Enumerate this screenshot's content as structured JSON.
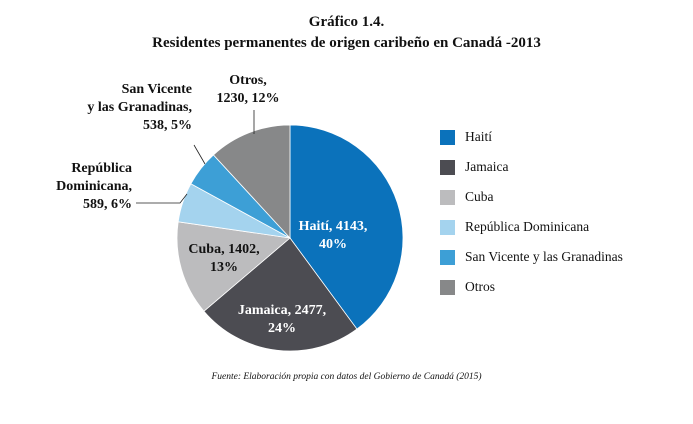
{
  "title": "Gráfico 1.4.",
  "subtitle": "Residentes permanentes de origen caribeño en Canadá -2013",
  "source": "Fuente: Elaboración propia con datos del Gobierno de Canadá (2015)",
  "chart_data": {
    "type": "pie",
    "categories": [
      "Haití",
      "Jamaica",
      "Cuba",
      "República Dominicana",
      "San Vicente y las Granadinas",
      "Otros"
    ],
    "values": [
      4143,
      2477,
      1402,
      589,
      538,
      1230
    ],
    "percents": [
      "40%",
      "24%",
      "13%",
      "6%",
      "5%",
      "12%"
    ],
    "colors": [
      "#0b72bb",
      "#4c4c52",
      "#bcbcbe",
      "#a4d3ee",
      "#3d9fd6",
      "#878889"
    ],
    "labels": [
      {
        "lines": [
          "Haití, 4143,",
          "40%"
        ],
        "color": "#ffffff"
      },
      {
        "lines": [
          "Jamaica, 2477,",
          "24%"
        ],
        "color": "#ffffff"
      },
      {
        "lines": [
          "Cuba, 1402,",
          "13%"
        ],
        "color": "#111111"
      },
      {
        "lines": [
          "República",
          "Dominicana,",
          "589, 6%"
        ],
        "color": "#111111"
      },
      {
        "lines": [
          "San Vicente",
          "y las Granadinas,",
          "538, 5%"
        ],
        "color": "#111111"
      },
      {
        "lines": [
          "Otros,",
          "1230, 12%"
        ],
        "color": "#111111"
      }
    ],
    "legend_position": "right"
  }
}
